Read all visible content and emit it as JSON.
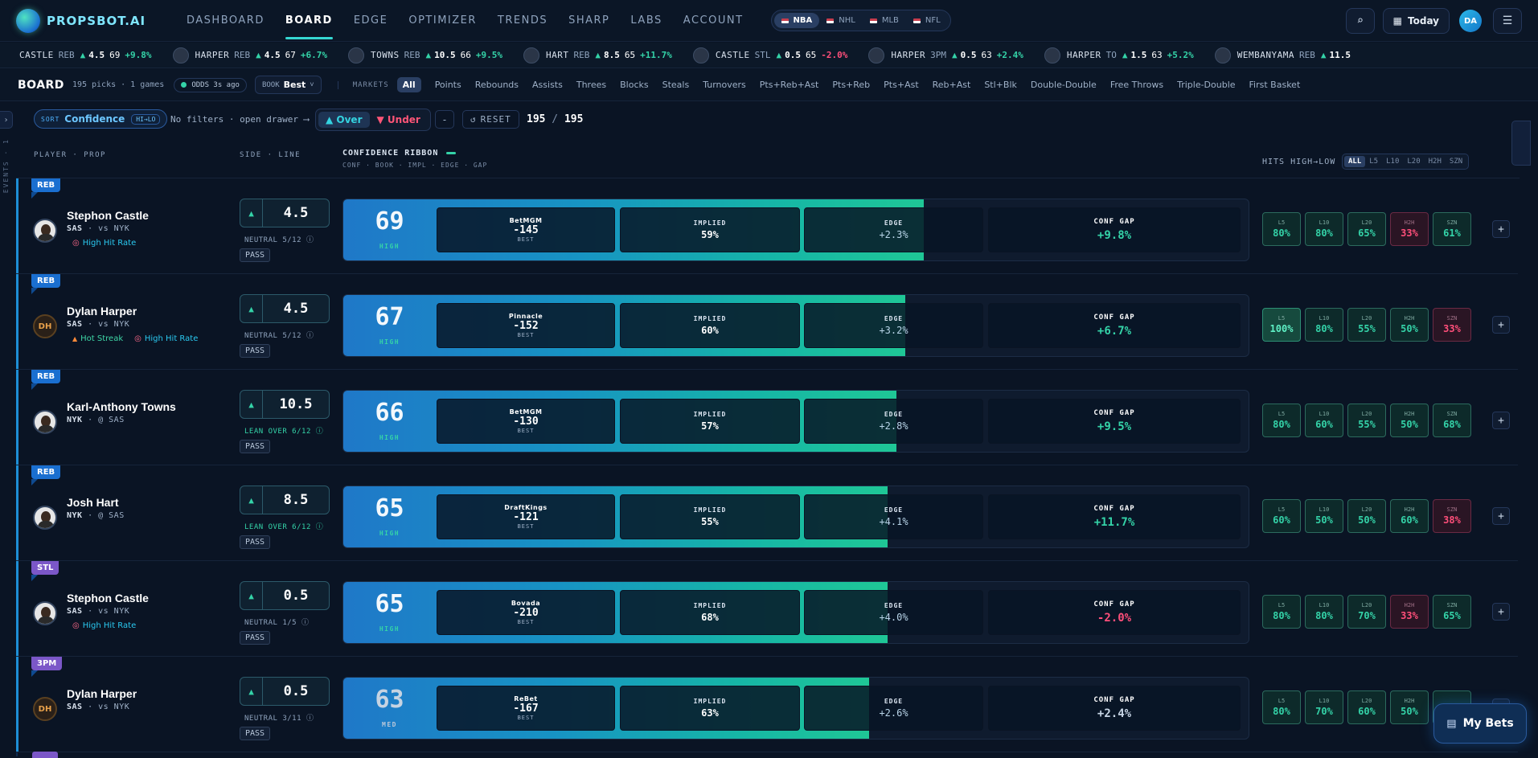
{
  "brand": {
    "name": "PROPSBOT.AI"
  },
  "nav": {
    "links": [
      "DASHBOARD",
      "BOARD",
      "EDGE",
      "OPTIMIZER",
      "TRENDS",
      "SHARP",
      "LABS",
      "ACCOUNT"
    ],
    "active": "BOARD",
    "leagues": [
      "NBA",
      "NHL",
      "MLB",
      "NFL"
    ],
    "active_league": "NBA",
    "today": "Today",
    "user_initials": "DA"
  },
  "ticker": [
    {
      "name": "CASTLE",
      "mkt": "REB",
      "line": "4.5",
      "conf": "69",
      "gap": "+9.8%",
      "sign": "pos",
      "avatar": false
    },
    {
      "name": "HARPER",
      "mkt": "REB",
      "line": "4.5",
      "conf": "67",
      "gap": "+6.7%",
      "sign": "pos",
      "avatar": true
    },
    {
      "name": "TOWNS",
      "mkt": "REB",
      "line": "10.5",
      "conf": "66",
      "gap": "+9.5%",
      "sign": "pos",
      "avatar": true
    },
    {
      "name": "HART",
      "mkt": "REB",
      "line": "8.5",
      "conf": "65",
      "gap": "+11.7%",
      "sign": "pos",
      "avatar": true
    },
    {
      "name": "CASTLE",
      "mkt": "STL",
      "line": "0.5",
      "conf": "65",
      "gap": "-2.0%",
      "sign": "neg",
      "avatar": true
    },
    {
      "name": "HARPER",
      "mkt": "3PM",
      "line": "0.5",
      "conf": "63",
      "gap": "+2.4%",
      "sign": "pos",
      "avatar": true
    },
    {
      "name": "HARPER",
      "mkt": "TO",
      "line": "1.5",
      "conf": "63",
      "gap": "+5.2%",
      "sign": "pos",
      "avatar": true
    },
    {
      "name": "WEMBANYAMA",
      "mkt": "REB",
      "line": "11.5",
      "conf": "",
      "gap": "",
      "sign": "pos",
      "avatar": true
    }
  ],
  "board": {
    "title": "BOARD",
    "meta": "195 picks · 1 games",
    "odds_status": "ODDS 3s ago",
    "book_label": "BOOK",
    "book_value": "Best",
    "markets_label": "MARKETS",
    "markets": [
      "All",
      "Points",
      "Rebounds",
      "Assists",
      "Threes",
      "Blocks",
      "Steals",
      "Turnovers",
      "Pts+Reb+Ast",
      "Pts+Reb",
      "Pts+Ast",
      "Reb+Ast",
      "Stl+Blk",
      "Double-Double",
      "Free Throws",
      "Triple-Double",
      "First Basket"
    ],
    "active_market": "All"
  },
  "filters": {
    "sort_label": "SORT",
    "sort_value": "Confidence",
    "sort_dir": "HI→LO",
    "no_filters": "No filters · open drawer ⟶",
    "over": "Over",
    "under": "Under",
    "dash": "-",
    "reset": "RESET",
    "count_shown": "195",
    "count_total": "195",
    "events_label": "EVENTS · 1"
  },
  "columns": {
    "player": "PLAYER · PROP",
    "side": "SIDE · LINE",
    "ribbon_title": "CONFIDENCE RIBBON",
    "ribbon_sub": "CONF · BOOK · IMPL · EDGE · GAP",
    "hits": "HITS HIGH→LOW",
    "windows": [
      "ALL",
      "L5",
      "L10",
      "L20",
      "H2H",
      "SZN"
    ],
    "active_window": "ALL"
  },
  "rows": [
    {
      "market": "REB",
      "market_class": "reb",
      "player": "Stephon Castle",
      "team": "SAS",
      "opp": "vs NYK",
      "avatar": "photo",
      "initials": "",
      "tags": [
        {
          "type": "hit",
          "text": "High Hit Rate"
        }
      ],
      "line": "4.5",
      "lean": "NEUTRAL 5/12",
      "lean_over": false,
      "action": "PASS",
      "conf": 69,
      "level": "HIGH",
      "book": "BetMGM",
      "odds": "-145",
      "best": "BEST",
      "implied": "59%",
      "edge": "+2.3%",
      "gap": "+9.8%",
      "gap_sign": "pos",
      "hits": [
        {
          "w": "L5",
          "v": "80%",
          "k": "pos"
        },
        {
          "w": "L10",
          "v": "80%",
          "k": "pos"
        },
        {
          "w": "L20",
          "v": "65%",
          "k": "pos"
        },
        {
          "w": "H2H",
          "v": "33%",
          "k": "neg"
        },
        {
          "w": "SZN",
          "v": "61%",
          "k": "pos"
        }
      ]
    },
    {
      "market": "REB",
      "market_class": "reb",
      "player": "Dylan Harper",
      "team": "SAS",
      "opp": "vs NYK",
      "avatar": "init",
      "initials": "DH",
      "tags": [
        {
          "type": "hot",
          "text": "Hot Streak"
        },
        {
          "type": "hit",
          "text": "High Hit Rate"
        }
      ],
      "line": "4.5",
      "lean": "NEUTRAL 5/12",
      "lean_over": false,
      "action": "PASS",
      "conf": 67,
      "level": "HIGH",
      "book": "Pinnacle",
      "odds": "-152",
      "best": "BEST",
      "implied": "60%",
      "edge": "+3.2%",
      "gap": "+6.7%",
      "gap_sign": "pos",
      "hits": [
        {
          "w": "L5",
          "v": "100%",
          "k": "strong"
        },
        {
          "w": "L10",
          "v": "80%",
          "k": "pos"
        },
        {
          "w": "L20",
          "v": "55%",
          "k": "pos"
        },
        {
          "w": "H2H",
          "v": "50%",
          "k": "pos"
        },
        {
          "w": "SZN",
          "v": "33%",
          "k": "neg"
        }
      ]
    },
    {
      "market": "REB",
      "market_class": "reb",
      "player": "Karl-Anthony Towns",
      "team": "NYK",
      "opp": "@ SAS",
      "avatar": "photo",
      "initials": "",
      "tags": [],
      "line": "10.5",
      "lean": "LEAN OVER 6/12",
      "lean_over": true,
      "action": "PASS",
      "conf": 66,
      "level": "HIGH",
      "book": "BetMGM",
      "odds": "-130",
      "best": "BEST",
      "implied": "57%",
      "edge": "+2.8%",
      "gap": "+9.5%",
      "gap_sign": "pos",
      "hits": [
        {
          "w": "L5",
          "v": "80%",
          "k": "pos"
        },
        {
          "w": "L10",
          "v": "60%",
          "k": "pos"
        },
        {
          "w": "L20",
          "v": "55%",
          "k": "pos"
        },
        {
          "w": "H2H",
          "v": "50%",
          "k": "pos"
        },
        {
          "w": "SZN",
          "v": "68%",
          "k": "pos"
        }
      ]
    },
    {
      "market": "REB",
      "market_class": "reb",
      "player": "Josh Hart",
      "team": "NYK",
      "opp": "@ SAS",
      "avatar": "photo",
      "initials": "",
      "tags": [],
      "line": "8.5",
      "lean": "LEAN OVER 6/12",
      "lean_over": true,
      "action": "PASS",
      "conf": 65,
      "level": "HIGH",
      "book": "DraftKings",
      "odds": "-121",
      "best": "BEST",
      "implied": "55%",
      "edge": "+4.1%",
      "gap": "+11.7%",
      "gap_sign": "pos",
      "hits": [
        {
          "w": "L5",
          "v": "60%",
          "k": "pos"
        },
        {
          "w": "L10",
          "v": "50%",
          "k": "pos"
        },
        {
          "w": "L20",
          "v": "50%",
          "k": "pos"
        },
        {
          "w": "H2H",
          "v": "60%",
          "k": "pos"
        },
        {
          "w": "SZN",
          "v": "38%",
          "k": "neg"
        }
      ]
    },
    {
      "market": "STL",
      "market_class": "stl",
      "player": "Stephon Castle",
      "team": "SAS",
      "opp": "vs NYK",
      "avatar": "photo",
      "initials": "",
      "tags": [
        {
          "type": "hit",
          "text": "High Hit Rate"
        }
      ],
      "line": "0.5",
      "lean": "NEUTRAL 1/5",
      "lean_over": false,
      "action": "PASS",
      "conf": 65,
      "level": "HIGH",
      "book": "Bovada",
      "odds": "-210",
      "best": "BEST",
      "implied": "68%",
      "edge": "+4.0%",
      "gap": "-2.0%",
      "gap_sign": "neg",
      "hits": [
        {
          "w": "L5",
          "v": "80%",
          "k": "pos"
        },
        {
          "w": "L10",
          "v": "80%",
          "k": "pos"
        },
        {
          "w": "L20",
          "v": "70%",
          "k": "pos"
        },
        {
          "w": "H2H",
          "v": "33%",
          "k": "neg"
        },
        {
          "w": "SZN",
          "v": "65%",
          "k": "pos"
        }
      ]
    },
    {
      "market": "3PM",
      "market_class": "tpm",
      "player": "Dylan Harper",
      "team": "SAS",
      "opp": "vs NYK",
      "avatar": "init",
      "initials": "DH",
      "tags": [],
      "line": "0.5",
      "lean": "NEUTRAL 3/11",
      "lean_over": false,
      "action": "PASS",
      "conf": 63,
      "level": "MED",
      "book": "ReBet",
      "odds": "-167",
      "best": "BEST",
      "implied": "63%",
      "edge": "+2.6%",
      "gap": "+2.4%",
      "gap_sign": "neu",
      "hits": [
        {
          "w": "L5",
          "v": "80%",
          "k": "pos"
        },
        {
          "w": "L10",
          "v": "70%",
          "k": "pos"
        },
        {
          "w": "L20",
          "v": "60%",
          "k": "pos"
        },
        {
          "w": "H2H",
          "v": "50%",
          "k": "pos"
        },
        {
          "w": "SZN",
          "v": "",
          "k": "pos"
        }
      ]
    }
  ],
  "my_bets": "My Bets",
  "colors": {
    "accent": "#35d7d2",
    "positive": "#34d3a8",
    "negative": "#ff4f7a",
    "ribbon_start": "#1f78c8",
    "ribbon_end": "#1fc796"
  },
  "icons": [
    "search-icon",
    "calendar-icon",
    "menu-icon",
    "receipt-icon",
    "plus-icon",
    "chevron-right-icon",
    "info-icon"
  ]
}
